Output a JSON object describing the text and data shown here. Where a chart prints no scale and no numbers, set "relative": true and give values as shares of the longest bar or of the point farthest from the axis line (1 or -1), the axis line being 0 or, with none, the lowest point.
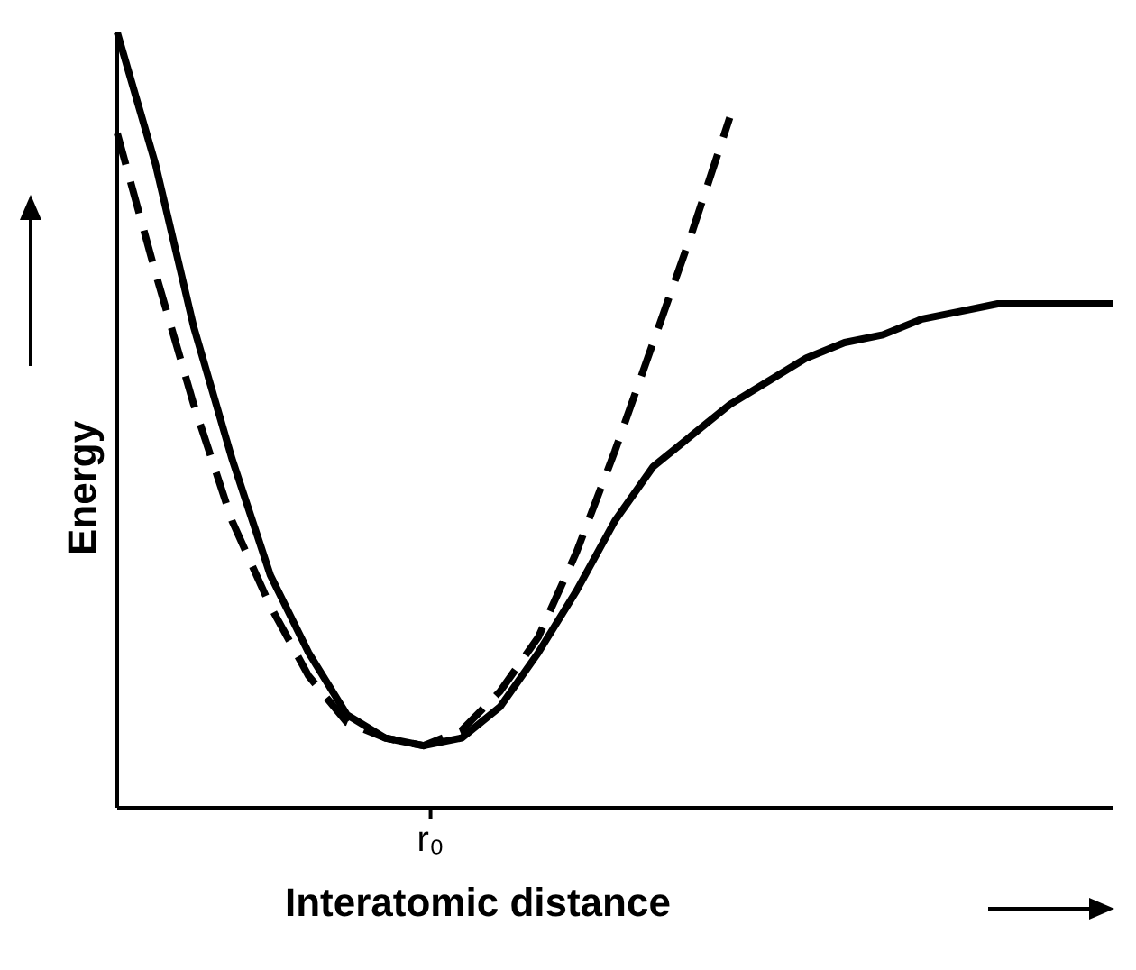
{
  "chart_data": {
    "type": "line",
    "relative": true,
    "xlabel": "Interatomic distance",
    "ylabel": "Energy",
    "categories": [
      null,
      null,
      null,
      null,
      null,
      null,
      null,
      null,
      null,
      null,
      null,
      null,
      null,
      null,
      null,
      null,
      null,
      null,
      null,
      null,
      null,
      null,
      null,
      null,
      null,
      null,
      null
    ],
    "annotations": [
      "r₀"
    ],
    "series": [
      {
        "color": "#000000",
        "line_style": "solid",
        "values": [
          1,
          0.83,
          0.62,
          0.45,
          0.3,
          0.2,
          0.12,
          0.09,
          0.08,
          0.09,
          0.13,
          0.2,
          0.28,
          0.37,
          0.44,
          0.48,
          0.52,
          0.55,
          0.58,
          0.6,
          0.61,
          0.63,
          0.64,
          0.65,
          0.65,
          0.65,
          0.65
        ]
      },
      {
        "color": "#000000",
        "line_style": "dashed",
        "values": [
          0.87,
          0.69,
          0.52,
          0.37,
          0.26,
          0.17,
          0.11,
          0.09,
          0.08,
          0.1,
          0.15,
          0.22,
          0.33,
          0.46,
          0.6,
          0.74,
          0.89,
          null,
          null,
          null,
          null,
          null,
          null,
          null,
          null,
          null,
          null
        ]
      }
    ]
  }
}
